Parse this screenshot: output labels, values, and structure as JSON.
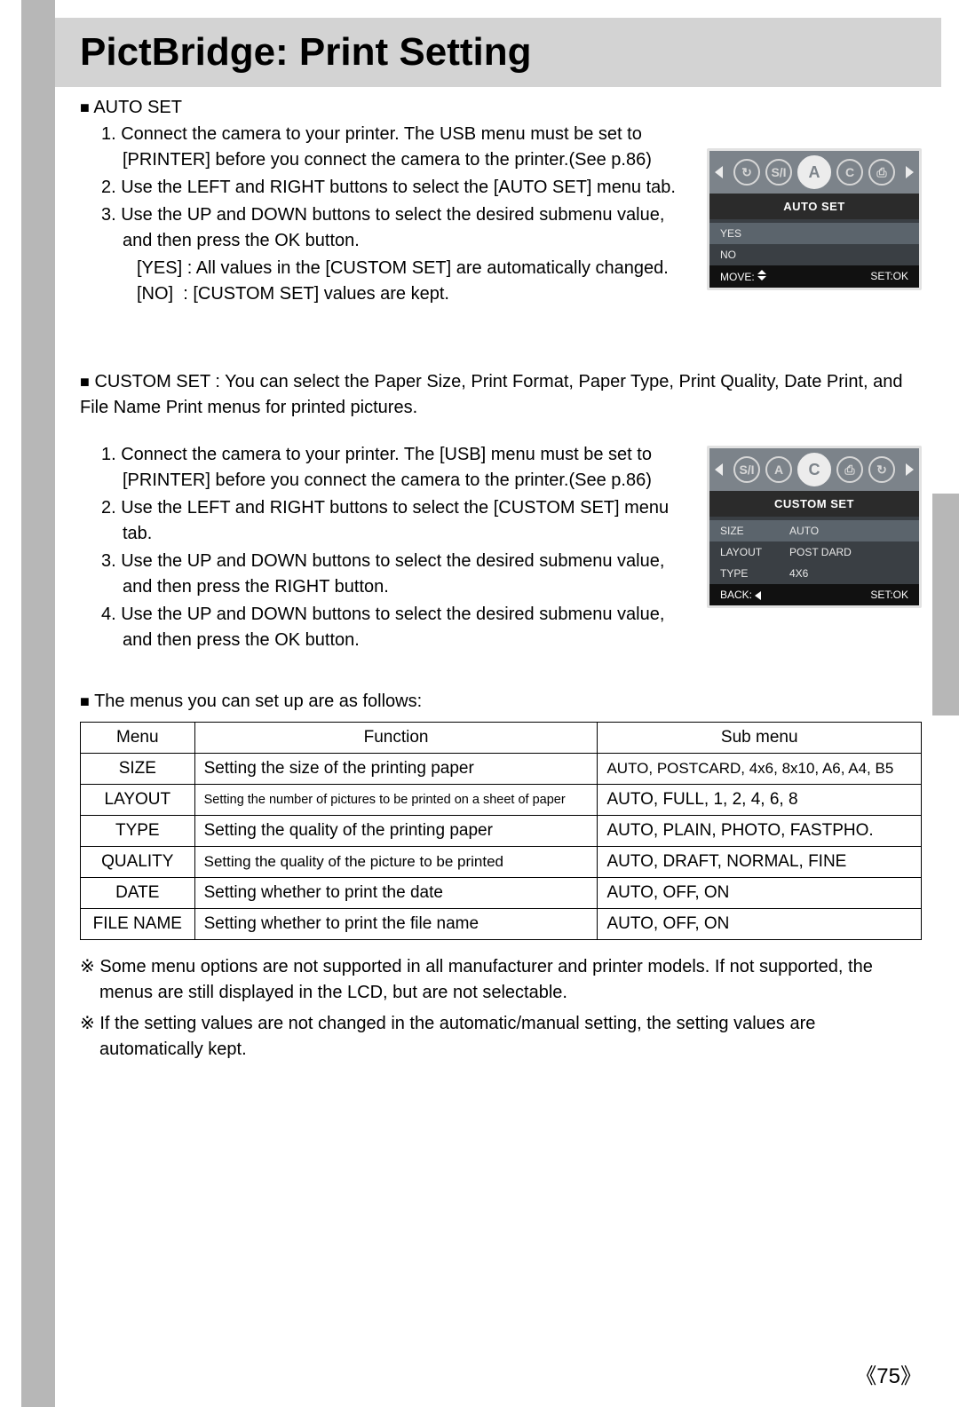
{
  "title": "PictBridge: Print Setting",
  "autoset": {
    "heading": "AUTO SET",
    "steps": [
      "1. Connect the camera to your printer. The USB menu must be set to [PRINTER] before you connect the camera to the printer.(See p.86)",
      "2. Use the LEFT and RIGHT buttons to select the [AUTO SET] menu tab.",
      "3. Use the UP and DOWN buttons to select the desired submenu value, and then press the OK button."
    ],
    "sub1": "[YES] : All values in the [CUSTOM SET] are automatically changed.",
    "sub2": "[NO]  : [CUSTOM SET] values are kept.",
    "lcd": {
      "icons": [
        "↻",
        "S/I",
        "A",
        "C",
        "⎙"
      ],
      "selected_index": 2,
      "banner": "AUTO SET",
      "rows": [
        {
          "c1": "YES",
          "c2": "",
          "hi": true
        },
        {
          "c1": "NO",
          "c2": "",
          "hi": false
        }
      ],
      "foot_left": "MOVE:",
      "foot_right": "SET:OK"
    }
  },
  "customset": {
    "intro": "CUSTOM SET : You can select the Paper Size, Print Format, Paper Type, Print Quality, Date Print, and File Name Print menus for printed pictures.",
    "steps": [
      "1. Connect the camera to your printer. The [USB] menu must be set to [PRINTER] before you connect the camera to the printer.(See p.86)",
      "2. Use the LEFT and RIGHT buttons to select the [CUSTOM  SET] menu tab.",
      "3. Use the UP and DOWN buttons to select the desired submenu value, and then press the RIGHT button.",
      "4. Use the UP and DOWN buttons to select the desired submenu value, and then press the OK button."
    ],
    "lcd": {
      "icons": [
        "S/I",
        "A",
        "C",
        "⎙",
        "↻"
      ],
      "selected_index": 2,
      "banner": "CUSTOM  SET",
      "rows": [
        {
          "c1": "SIZE",
          "c2": "AUTO",
          "hi": true
        },
        {
          "c1": "LAYOUT",
          "c2": "POST DARD",
          "hi": false
        },
        {
          "c1": "TYPE",
          "c2": "4X6",
          "hi": false
        }
      ],
      "foot_left": "BACK:",
      "foot_right": "SET:OK"
    }
  },
  "tablelead": "The menus you can set up are as follows:",
  "table": {
    "headers": [
      "Menu",
      "Function",
      "Sub menu"
    ],
    "rows": [
      {
        "menu": "SIZE",
        "func": "Setting the size of the printing paper",
        "sub": "AUTO, POSTCARD, 4x6, 8x10, A6, A4, B5",
        "fclass": "",
        "sclass": "fmed"
      },
      {
        "menu": "LAYOUT",
        "func": "Setting the number of pictures to be printed on a sheet of paper",
        "sub": "AUTO, FULL, 1, 2, 4, 6, 8",
        "fclass": "fsmall",
        "sclass": ""
      },
      {
        "menu": "TYPE",
        "func": "Setting the quality of the printing paper",
        "sub": "AUTO, PLAIN, PHOTO, FASTPHO.",
        "fclass": "",
        "sclass": ""
      },
      {
        "menu": "QUALITY",
        "func": "Setting the quality of the picture to be printed",
        "sub": "AUTO, DRAFT, NORMAL, FINE",
        "fclass": "fmed",
        "sclass": ""
      },
      {
        "menu": "DATE",
        "func": "Setting whether to print the date",
        "sub": "AUTO, OFF, ON",
        "fclass": "",
        "sclass": ""
      },
      {
        "menu": "FILE NAME",
        "func": "Setting whether to print the file name",
        "sub": "AUTO, OFF, ON",
        "fclass": "",
        "sclass": ""
      }
    ]
  },
  "notes": [
    "Some menu options are not supported in all manufacturer and printer models. If not supported, the menus are still displayed in the LCD, but are not selectable.",
    "If the setting values are not changed in the automatic/manual setting, the setting values are automatically kept."
  ],
  "page_number": "75",
  "glyphs": {
    "square": "■",
    "ref": "※",
    "lbrk": "《",
    "rbrk": "》"
  }
}
